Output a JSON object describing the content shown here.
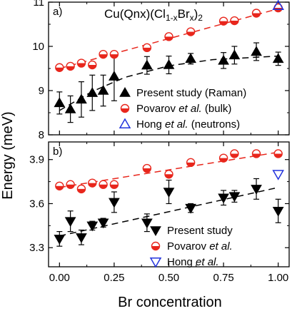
{
  "figure": {
    "ylabel": "Energy (meV)",
    "xlabel": "Br concentration",
    "x_ticks": [
      "0.00",
      "0.25",
      "0.50",
      "0.75",
      "1.00"
    ]
  },
  "colors": {
    "raman": "#000000",
    "povarov": "#e8261c",
    "hong": "#2233dd",
    "axes": "#000000"
  },
  "chart_data": [
    {
      "type": "scatter",
      "panel_label": "a)",
      "title_parts": {
        "main": "Cu(Qnx)(Cl",
        "sub1": "1-x",
        "mid": "Br",
        "sub2": "x",
        "end": ")",
        "sub3": "2"
      },
      "xlim": [
        -0.05,
        1.05
      ],
      "ylim": [
        8,
        11
      ],
      "yticks": [
        "8",
        "9",
        "10",
        "11"
      ],
      "grid": false,
      "legend_position": "bottom-right",
      "legend": [
        {
          "text": "Present study (Raman)",
          "marker": "triangle-up-filled",
          "color": "#000000"
        },
        {
          "prefix": "Povarov ",
          "italic": "et al.",
          "suffix": " (bulk)",
          "marker": "half-filled-circle",
          "color": "#e8261c"
        },
        {
          "prefix": "Hong ",
          "italic": "et al.",
          "suffix": " (neutrons)",
          "marker": "triangle-up-open",
          "color": "#2233dd"
        }
      ],
      "series": [
        {
          "name": "Present study (Raman)",
          "marker": "triangle-up-filled",
          "points": [
            {
              "x": 0.0,
              "y": 8.72,
              "err": 0.25
            },
            {
              "x": 0.05,
              "y": 8.58,
              "err": 0.3
            },
            {
              "x": 0.1,
              "y": 8.8,
              "err": 0.4
            },
            {
              "x": 0.15,
              "y": 8.95,
              "err": 0.4
            },
            {
              "x": 0.2,
              "y": 9.0,
              "err": 0.35
            },
            {
              "x": 0.25,
              "y": 9.32,
              "err": 0.55
            },
            {
              "x": 0.4,
              "y": 9.57,
              "err": 0.2
            },
            {
              "x": 0.5,
              "y": 9.58,
              "err": 0.2
            },
            {
              "x": 0.6,
              "y": 9.72,
              "err": 0.12
            },
            {
              "x": 0.75,
              "y": 9.68,
              "err": 0.18
            },
            {
              "x": 0.8,
              "y": 9.8,
              "err": 0.2
            },
            {
              "x": 0.9,
              "y": 9.88,
              "err": 0.2
            },
            {
              "x": 1.0,
              "y": 9.72,
              "err": 0.15
            }
          ]
        },
        {
          "name": "Povarov et al. (bulk)",
          "marker": "half-filled-circle",
          "points": [
            {
              "x": 0.0,
              "y": 9.52
            },
            {
              "x": 0.05,
              "y": 9.55
            },
            {
              "x": 0.1,
              "y": 9.62
            },
            {
              "x": 0.15,
              "y": 9.58
            },
            {
              "x": 0.2,
              "y": 9.82
            },
            {
              "x": 0.25,
              "y": 9.82
            },
            {
              "x": 0.4,
              "y": 9.97
            },
            {
              "x": 0.5,
              "y": 10.22
            },
            {
              "x": 0.6,
              "y": 10.33
            },
            {
              "x": 0.75,
              "y": 10.57
            },
            {
              "x": 0.8,
              "y": 10.58
            },
            {
              "x": 0.9,
              "y": 10.75
            },
            {
              "x": 1.0,
              "y": 10.87
            }
          ]
        },
        {
          "name": "Hong et al. (neutrons)",
          "marker": "triangle-up-open",
          "points": [
            {
              "x": 1.0,
              "y": 10.92
            }
          ]
        }
      ],
      "fits": [
        {
          "color": "#e8261c",
          "from": [
            0.0,
            9.5
          ],
          "to": [
            1.0,
            10.85
          ]
        },
        {
          "color": "#000000",
          "curve": [
            [
              0.0,
              8.55
            ],
            [
              0.15,
              8.98
            ],
            [
              0.3,
              9.3
            ],
            [
              0.5,
              9.56
            ],
            [
              0.7,
              9.7
            ],
            [
              1.0,
              9.78
            ]
          ]
        }
      ]
    },
    {
      "type": "scatter",
      "panel_label": "b)",
      "xlim": [
        -0.05,
        1.05
      ],
      "ylim": [
        3.17,
        4.02
      ],
      "yticks": [
        "3.3",
        "3.6",
        "3.9"
      ],
      "ytick_values": [
        3.3,
        3.6,
        3.9
      ],
      "grid": false,
      "legend_position": "bottom-right",
      "legend": [
        {
          "text": "Present study",
          "marker": "triangle-down-filled",
          "color": "#000000"
        },
        {
          "prefix": "Povarov ",
          "italic": "et al.",
          "suffix": "",
          "marker": "half-filled-circle",
          "color": "#e8261c"
        },
        {
          "prefix": "Hong ",
          "italic": "et al.",
          "suffix": "",
          "marker": "triangle-down-open",
          "color": "#2233dd"
        }
      ],
      "series": [
        {
          "name": "Present study",
          "marker": "triangle-down-filled",
          "points": [
            {
              "x": 0.0,
              "y": 3.36,
              "err": 0.05
            },
            {
              "x": 0.05,
              "y": 3.48,
              "err": 0.07
            },
            {
              "x": 0.1,
              "y": 3.37,
              "err": 0.05
            },
            {
              "x": 0.15,
              "y": 3.45,
              "err": 0.03
            },
            {
              "x": 0.2,
              "y": 3.47,
              "err": 0.03
            },
            {
              "x": 0.25,
              "y": 3.61,
              "err": 0.07
            },
            {
              "x": 0.4,
              "y": 3.47,
              "err": 0.06
            },
            {
              "x": 0.5,
              "y": 3.68,
              "err": 0.08
            },
            {
              "x": 0.6,
              "y": 3.57,
              "err": 0.03
            },
            {
              "x": 0.75,
              "y": 3.64,
              "err": 0.05
            },
            {
              "x": 0.8,
              "y": 3.65,
              "err": 0.04
            },
            {
              "x": 0.9,
              "y": 3.7,
              "err": 0.07
            },
            {
              "x": 1.0,
              "y": 3.55,
              "err": 0.08
            }
          ]
        },
        {
          "name": "Povarov et al.",
          "marker": "half-filled-circle",
          "points": [
            {
              "x": 0.0,
              "y": 3.72
            },
            {
              "x": 0.05,
              "y": 3.73
            },
            {
              "x": 0.1,
              "y": 3.7
            },
            {
              "x": 0.15,
              "y": 3.74
            },
            {
              "x": 0.2,
              "y": 3.73
            },
            {
              "x": 0.25,
              "y": 3.73
            },
            {
              "x": 0.4,
              "y": 3.84
            },
            {
              "x": 0.5,
              "y": 3.8
            },
            {
              "x": 0.6,
              "y": 3.88
            },
            {
              "x": 0.75,
              "y": 3.91
            },
            {
              "x": 0.8,
              "y": 3.94
            },
            {
              "x": 0.9,
              "y": 3.94
            },
            {
              "x": 1.0,
              "y": 3.94
            }
          ]
        },
        {
          "name": "Hong et al.",
          "marker": "triangle-down-open",
          "points": [
            {
              "x": 1.0,
              "y": 3.8
            }
          ]
        }
      ],
      "fits": [
        {
          "color": "#e8261c",
          "from": [
            0.0,
            3.71
          ],
          "to": [
            1.0,
            3.95
          ]
        },
        {
          "color": "#000000",
          "from": [
            0.0,
            3.38
          ],
          "to": [
            1.0,
            3.71
          ]
        }
      ]
    }
  ]
}
